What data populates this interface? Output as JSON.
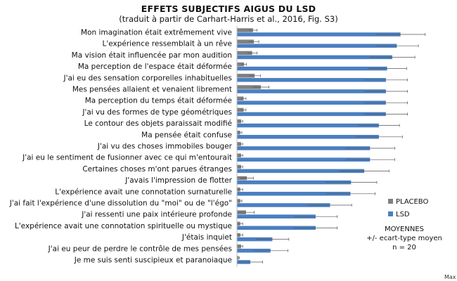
{
  "chart_data": {
    "type": "bar",
    "orientation": "horizontal",
    "title": "EFFETS SUBJECTIFS AIGUS DU LSD",
    "subtitle": "(traduit à partir de Carhart-Harris et al., 2016, Fig. S3)",
    "categories": [
      "Mon imagination était extrêmement vive",
      "L'expérience ressemblait à un rêve",
      "Ma vision était influencée par mon audition",
      "Ma perception de l'espace était déformée",
      "J'ai eu des sensation corporelles inhabituelles",
      "Mes pensées allaient et venaient librement",
      "Ma perception du temps était déformée",
      "J'ai vu des formes de type géométriques",
      "Le contour des objets paraissait modifié",
      "Ma pensée était confuse",
      "J'ai vu des choses immobiles bouger",
      "J'ai eu le sentiment de fusionner avec ce qui m'entourait",
      "Certaines choses m'ont parues étranges",
      "J'avais l'impression de flotter",
      "L'expérience avait une connotation surnaturelle",
      "J'ai fait l'expérience d'une dissolution du \"moi\" ou de \"l'égo\"",
      "J'ai ressenti une paix intérieure profonde",
      "L'expérience avait une connotation spirituelle ou mystique",
      "J'étais inquiet",
      "J'ai eu peur de perdre le contrôle de mes pensées",
      "Je me suis senti suscipieux et paranoiaque"
    ],
    "series": [
      {
        "name": "PLACEBO",
        "color": "#808080",
        "values": [
          7.8,
          8.2,
          7.4,
          3.4,
          8.6,
          11.6,
          3.2,
          3.2,
          2.0,
          1.6,
          2.0,
          2.0,
          2.0,
          4.8,
          1.6,
          1.6,
          4.4,
          1.6,
          1.6,
          2.0,
          0.8
        ],
        "errors": [
          2.0,
          2.4,
          2.4,
          1.2,
          2.8,
          4.0,
          1.2,
          1.2,
          0.8,
          0.8,
          0.8,
          0.8,
          0.8,
          3.2,
          1.2,
          0.8,
          4.0,
          1.2,
          1.2,
          0.8,
          0.4
        ]
      },
      {
        "name": "LSD",
        "color": "#4a7fc1",
        "values": [
          79.4,
          77.6,
          75.4,
          72.9,
          72.3,
          72.3,
          72.3,
          72.3,
          68.9,
          68.9,
          64.6,
          64.6,
          61.8,
          55.4,
          55.1,
          45.2,
          38.2,
          38.2,
          17.2,
          16.3,
          6.5
        ],
        "errors": [
          12.0,
          10.5,
          11.0,
          9.5,
          10.5,
          10.5,
          10.5,
          10.5,
          10.0,
          11.5,
          12.0,
          12.0,
          12.0,
          12.5,
          12.0,
          10.5,
          10.5,
          10.5,
          8.0,
          8.5,
          6.0
        ]
      }
    ],
    "xlim": [
      0,
      100
    ],
    "x_axis_end_label": "Max",
    "legend": {
      "placement": "right",
      "entries": [
        "PLACEBO",
        "LSD"
      ]
    },
    "note_lines": [
      "MOYENNES",
      "+/- ecart-type moyen",
      "n = 20"
    ],
    "grid": false
  }
}
